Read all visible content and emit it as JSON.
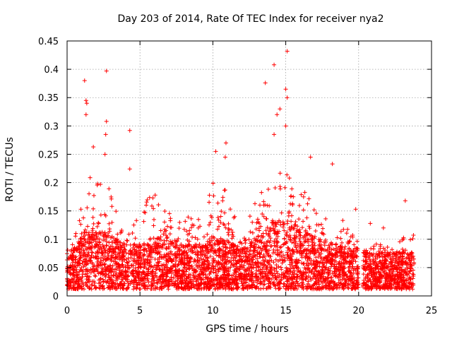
{
  "chart_data": {
    "type": "scatter",
    "title": "Day 203 of 2014, Rate Of TEC Index for receiver nya2",
    "xlabel": "GPS time / hours",
    "ylabel": "ROTI / TECUs",
    "xlim": [
      0,
      25
    ],
    "ylim": [
      0,
      0.45
    ],
    "xticks": [
      0,
      5,
      10,
      15,
      20,
      25
    ],
    "xtick_labels": [
      "0",
      "5",
      "10",
      "15",
      "20",
      "25"
    ],
    "yticks": [
      0,
      0.05,
      0.1,
      0.15,
      0.2,
      0.25,
      0.3,
      0.35,
      0.4,
      0.45
    ],
    "ytick_labels": [
      "0",
      "0.05",
      "0.1",
      "0.15",
      "0.2",
      "0.25",
      "0.3",
      "0.35",
      "0.4",
      "0.45"
    ],
    "grid": true,
    "marker": "+",
    "marker_color": "#ff0000",
    "series_name": "ROTI",
    "data_gap_hours": [
      20.0,
      20.3
    ],
    "data_end_hours": 23.8,
    "envelope": {
      "x": [
        0,
        0.5,
        1.0,
        1.3,
        2.0,
        2.7,
        3.5,
        4.5,
        5.0,
        5.5,
        6.0,
        6.5,
        7.0,
        7.5,
        8.0,
        8.5,
        9.0,
        9.5,
        10.0,
        10.5,
        11.0,
        11.5,
        12.0,
        12.5,
        13.0,
        13.5,
        14.0,
        14.5,
        15.0,
        15.5,
        16.0,
        16.5,
        17.0,
        17.5,
        18.0,
        18.5,
        19.0,
        19.5,
        20.0,
        20.3,
        21.0,
        21.5,
        22.0,
        22.5,
        23.0,
        23.5,
        23.8
      ],
      "median": [
        0.045,
        0.05,
        0.065,
        0.075,
        0.07,
        0.07,
        0.06,
        0.055,
        0.055,
        0.06,
        0.065,
        0.06,
        0.06,
        0.055,
        0.055,
        0.055,
        0.055,
        0.06,
        0.065,
        0.06,
        0.06,
        0.055,
        0.05,
        0.055,
        0.065,
        0.07,
        0.08,
        0.085,
        0.085,
        0.08,
        0.075,
        0.07,
        0.065,
        0.06,
        0.055,
        0.055,
        0.05,
        0.05,
        0.05,
        0.045,
        0.045,
        0.045,
        0.045,
        0.045,
        0.045,
        0.045,
        0.045
      ],
      "upper": [
        0.09,
        0.1,
        0.2,
        0.22,
        0.2,
        0.2,
        0.15,
        0.13,
        0.15,
        0.17,
        0.19,
        0.15,
        0.15,
        0.13,
        0.14,
        0.14,
        0.14,
        0.17,
        0.2,
        0.18,
        0.2,
        0.14,
        0.12,
        0.14,
        0.17,
        0.2,
        0.22,
        0.23,
        0.22,
        0.2,
        0.19,
        0.18,
        0.15,
        0.14,
        0.14,
        0.15,
        0.13,
        0.11,
        0.1,
        0.08,
        0.09,
        0.1,
        0.09,
        0.09,
        0.1,
        0.12,
        0.12
      ]
    },
    "outliers": [
      {
        "x": 1.2,
        "y": 0.38
      },
      {
        "x": 1.3,
        "y": 0.345
      },
      {
        "x": 1.35,
        "y": 0.34
      },
      {
        "x": 1.3,
        "y": 0.32
      },
      {
        "x": 1.8,
        "y": 0.263
      },
      {
        "x": 2.7,
        "y": 0.397
      },
      {
        "x": 2.7,
        "y": 0.308
      },
      {
        "x": 2.65,
        "y": 0.285
      },
      {
        "x": 2.6,
        "y": 0.25
      },
      {
        "x": 4.3,
        "y": 0.292
      },
      {
        "x": 4.3,
        "y": 0.224
      },
      {
        "x": 10.2,
        "y": 0.255
      },
      {
        "x": 10.9,
        "y": 0.27
      },
      {
        "x": 10.85,
        "y": 0.245
      },
      {
        "x": 13.6,
        "y": 0.376
      },
      {
        "x": 14.2,
        "y": 0.408
      },
      {
        "x": 15.1,
        "y": 0.432
      },
      {
        "x": 15.0,
        "y": 0.365
      },
      {
        "x": 15.1,
        "y": 0.35
      },
      {
        "x": 14.6,
        "y": 0.33
      },
      {
        "x": 14.4,
        "y": 0.32
      },
      {
        "x": 15.0,
        "y": 0.3
      },
      {
        "x": 14.2,
        "y": 0.285
      },
      {
        "x": 16.7,
        "y": 0.245
      },
      {
        "x": 18.2,
        "y": 0.233
      },
      {
        "x": 19.8,
        "y": 0.153
      },
      {
        "x": 20.8,
        "y": 0.128
      },
      {
        "x": 21.7,
        "y": 0.12
      },
      {
        "x": 23.2,
        "y": 0.168
      }
    ]
  }
}
